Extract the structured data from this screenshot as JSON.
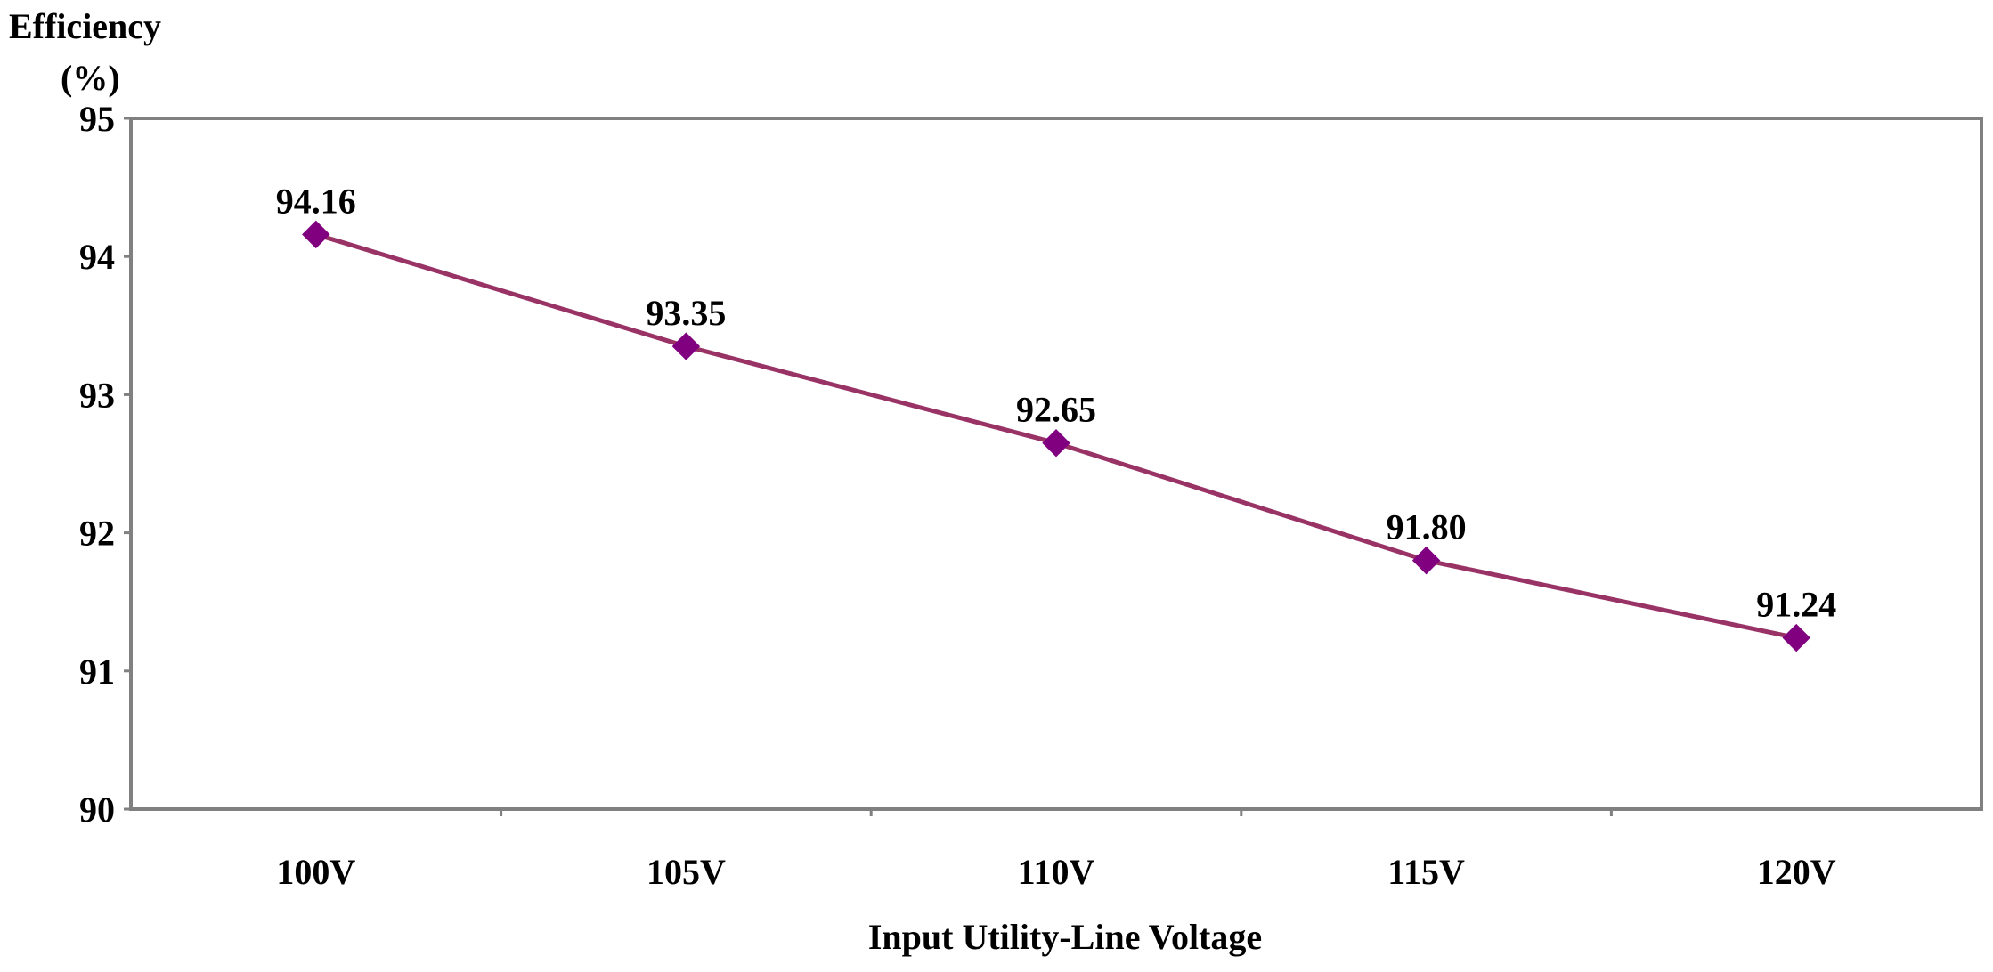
{
  "chart_data": {
    "type": "line",
    "title": "",
    "ylabel_line1": "Efficiency",
    "ylabel_line2": "(%)",
    "xlabel": "Input Utility-Line Voltage",
    "categories": [
      "100V",
      "105V",
      "110V",
      "115V",
      "120V"
    ],
    "series": [
      {
        "name": "Efficiency",
        "values": [
          94.16,
          93.35,
          92.65,
          91.8,
          91.24
        ],
        "labels": [
          "94.16",
          "93.35",
          "92.65",
          "91.80",
          "91.24"
        ],
        "line_color": "#993366",
        "marker_color": "#800080",
        "marker": "diamond"
      }
    ],
    "ylim": [
      90,
      95
    ],
    "yticks": [
      "90",
      "91",
      "92",
      "93",
      "94",
      "95"
    ],
    "grid": false,
    "legend": "none"
  }
}
